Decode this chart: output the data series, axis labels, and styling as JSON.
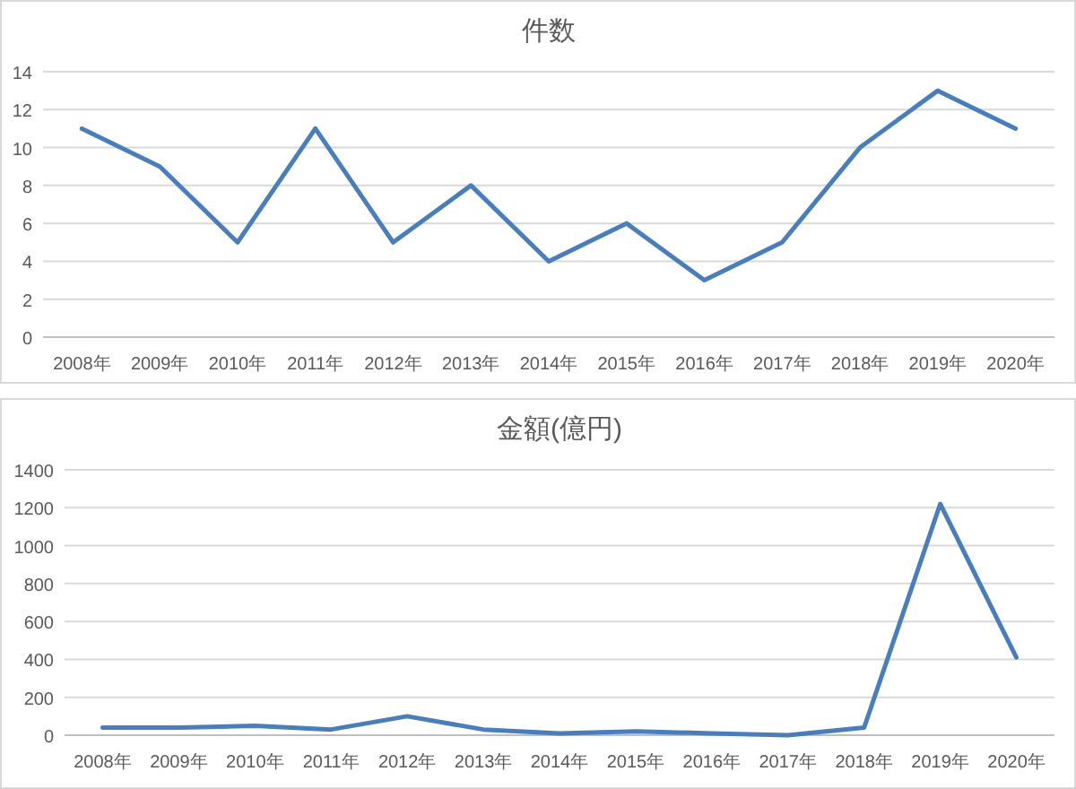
{
  "chart_data": [
    {
      "type": "line",
      "title": "件数",
      "categories": [
        "2008年",
        "2009年",
        "2010年",
        "2011年",
        "2012年",
        "2013年",
        "2014年",
        "2015年",
        "2016年",
        "2017年",
        "2018年",
        "2019年",
        "2020年"
      ],
      "series": [
        {
          "color": "#4a7ebb",
          "values": [
            11,
            9,
            5,
            11,
            5,
            8,
            4,
            6,
            3,
            5,
            10,
            13,
            11
          ]
        }
      ],
      "ylim": [
        0,
        14
      ],
      "yticks": [
        0,
        2,
        4,
        6,
        8,
        10,
        12,
        14
      ],
      "grid": "y",
      "marker": "none",
      "line_style": "solid"
    },
    {
      "type": "line",
      "title": "金額(億円)",
      "categories": [
        "2008年",
        "2009年",
        "2010年",
        "2011年",
        "2012年",
        "2013年",
        "2014年",
        "2015年",
        "2016年",
        "2017年",
        "2018年",
        "2019年",
        "2020年"
      ],
      "series": [
        {
          "color": "#4a7ebb",
          "values": [
            40,
            40,
            50,
            30,
            100,
            30,
            10,
            20,
            10,
            0,
            40,
            1220,
            410
          ]
        }
      ],
      "ylim": [
        0,
        1400
      ],
      "yticks": [
        0,
        200,
        400,
        600,
        800,
        1000,
        1200,
        1400
      ],
      "grid": "y",
      "marker": "none",
      "line_style": "solid"
    }
  ]
}
